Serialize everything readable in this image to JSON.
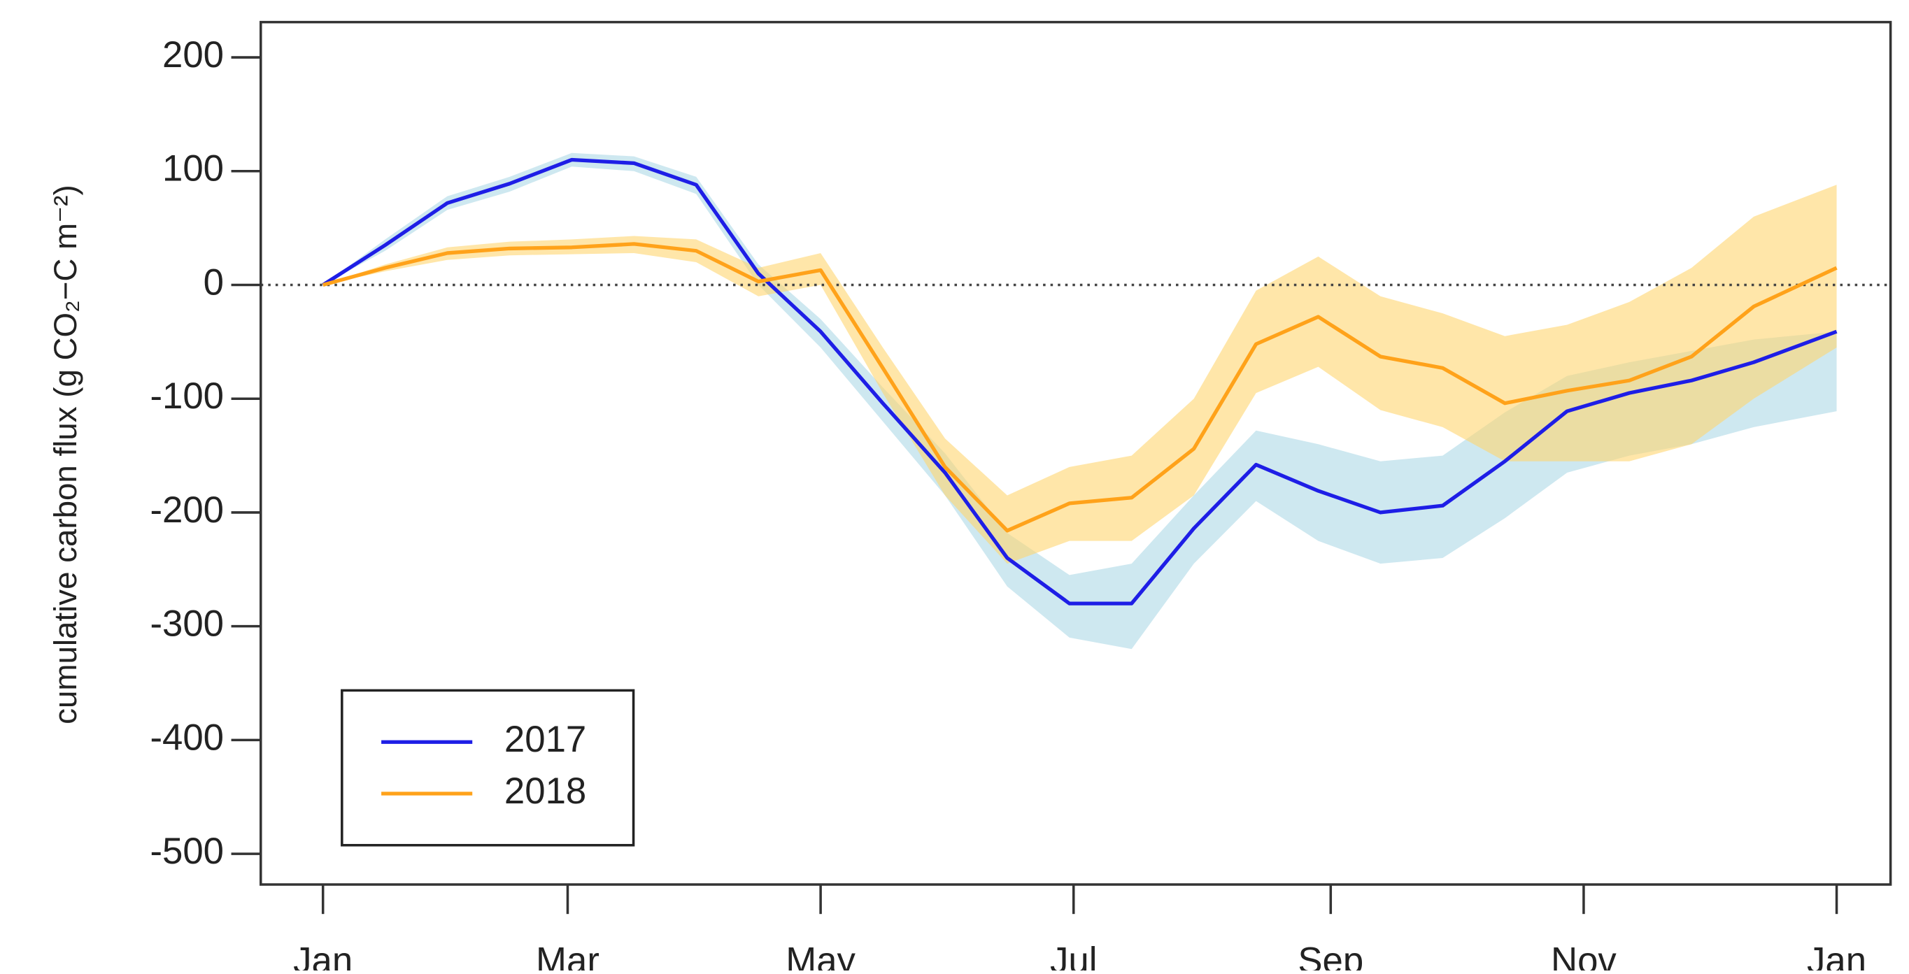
{
  "chart_data": {
    "type": "line",
    "y_label": "cumulative carbon flux (g CO₂−C m⁻²)",
    "x": [
      0,
      15,
      30,
      45,
      60,
      75,
      90,
      105,
      120,
      135,
      150,
      165,
      180,
      195,
      210,
      225,
      240,
      255,
      270,
      285,
      300,
      315,
      330,
      345,
      365
    ],
    "series": [
      {
        "name": "2017",
        "color": "#1e1ee6",
        "band_color": "#add8e6",
        "values": [
          0,
          35,
          72,
          89,
          110,
          107,
          88,
          10,
          -41,
          -104,
          -165,
          -240,
          -280,
          -280,
          -214,
          -158,
          -181,
          -200,
          -194,
          -155,
          -111,
          -95,
          -84,
          -68,
          -41
        ],
        "lower": [
          0,
          30,
          66,
          82,
          104,
          100,
          80,
          0,
          -55,
          -120,
          -185,
          -265,
          -310,
          -320,
          -245,
          -190,
          -225,
          -245,
          -240,
          -205,
          -165,
          -150,
          -140,
          -125,
          -111
        ],
        "upper": [
          0,
          40,
          78,
          95,
          116,
          113,
          95,
          18,
          -30,
          -90,
          -148,
          -218,
          -255,
          -245,
          -185,
          -128,
          -140,
          -155,
          -150,
          -112,
          -80,
          -68,
          -58,
          -48,
          -41
        ]
      },
      {
        "name": "2018",
        "color": "#ffa21a",
        "band_color": "#ffd570",
        "values": [
          0,
          15,
          28,
          32,
          33,
          36,
          30,
          3,
          13,
          -73,
          -160,
          -216,
          -192,
          -187,
          -144,
          -52,
          -28,
          -63,
          -73,
          -104,
          -93,
          -84,
          -63,
          -19,
          15
        ],
        "lower": [
          0,
          12,
          22,
          26,
          27,
          28,
          20,
          -10,
          0,
          -95,
          -185,
          -245,
          -225,
          -225,
          -185,
          -95,
          -72,
          -110,
          -125,
          -155,
          -155,
          -155,
          -140,
          -100,
          -55
        ],
        "upper": [
          0,
          18,
          33,
          38,
          40,
          43,
          40,
          15,
          28,
          -55,
          -135,
          -185,
          -160,
          -150,
          -100,
          -5,
          25,
          -10,
          -25,
          -45,
          -35,
          -15,
          15,
          60,
          88
        ]
      }
    ],
    "hline": 0,
    "xlim": [
      -15,
      378
    ],
    "ylim": [
      -527,
      231
    ],
    "xticks": [
      {
        "value": 0,
        "label": "Jan"
      },
      {
        "value": 59,
        "label": "Mar"
      },
      {
        "value": 120,
        "label": "May"
      },
      {
        "value": 181,
        "label": "Jul"
      },
      {
        "value": 243,
        "label": "Sep"
      },
      {
        "value": 304,
        "label": "Nov"
      },
      {
        "value": 365,
        "label": "Jan"
      }
    ],
    "yticks": [
      200,
      100,
      0,
      -100,
      -200,
      -300,
      -400,
      -500
    ],
    "legend": "bottom-left"
  }
}
